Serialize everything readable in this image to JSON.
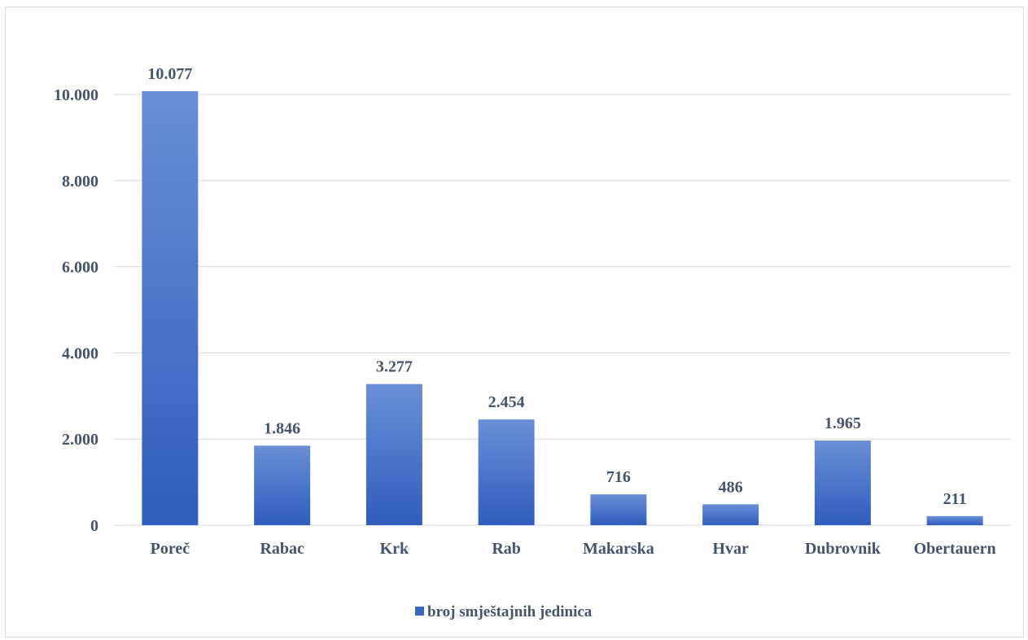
{
  "chart_data": {
    "type": "bar",
    "title": "",
    "xlabel": "",
    "ylabel": "",
    "categories": [
      "Poreč",
      "Rabac",
      "Krk",
      "Rab",
      "Makarska",
      "Hvar",
      "Dubrovnik",
      "Obertauern"
    ],
    "series": [
      {
        "name": "broj smještajnih jedinica",
        "values": [
          10077,
          1846,
          3277,
          2454,
          716,
          486,
          1965,
          211
        ],
        "labels": [
          "10.077",
          "1.846",
          "3.277",
          "2.454",
          "716",
          "486",
          "1.965",
          "211"
        ]
      }
    ],
    "ylim": [
      0,
      11000
    ],
    "yticks": [
      0,
      2000,
      4000,
      6000,
      8000,
      10000
    ],
    "ytick_labels": [
      "0",
      "2.000",
      "4.000",
      "6.000",
      "8.000",
      "10.000"
    ],
    "grid": true,
    "legend_position": "bottom",
    "colors": {
      "bar_top": "#6a8fd6",
      "bar_bottom": "#2f5dbd",
      "gridline": "#d9d9d9",
      "text": "#44546a",
      "legend_swatch": "#3c66c4"
    }
  }
}
